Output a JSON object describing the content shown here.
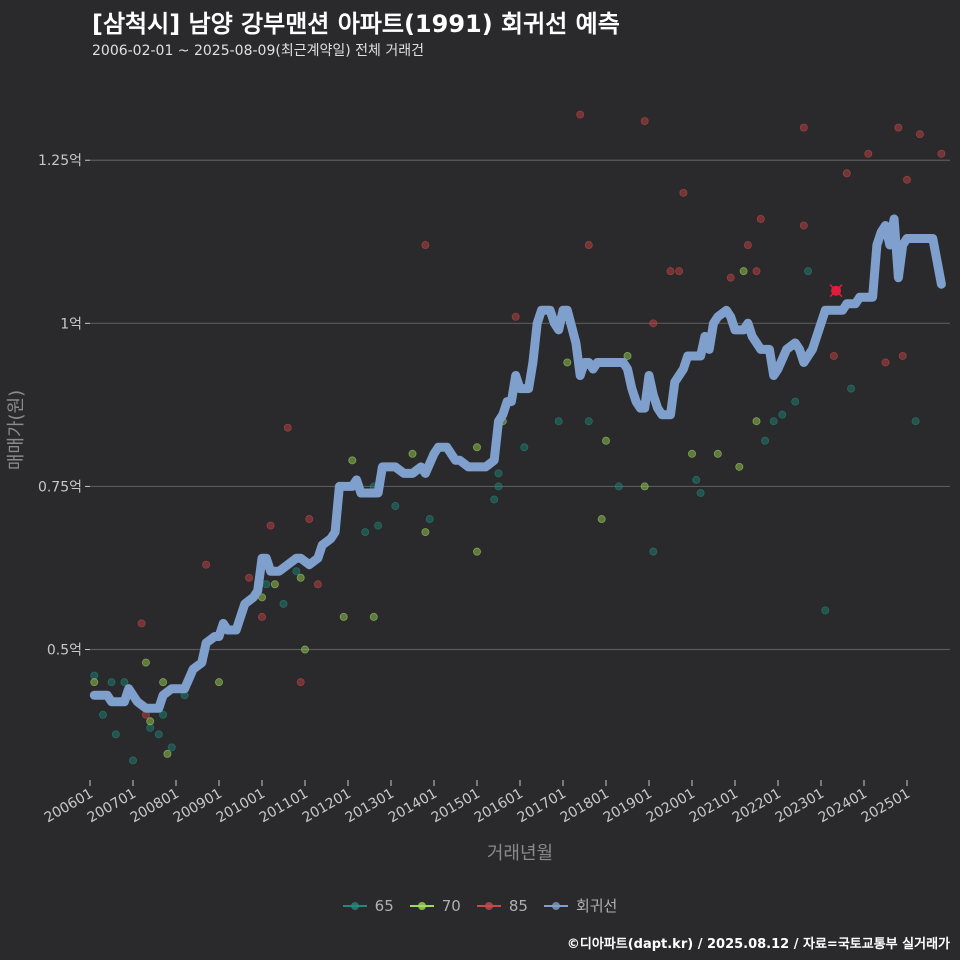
{
  "chart_data": {
    "type": "scatter",
    "title": "[삼척시] 남양 강부맨션 아파트(1991) 회귀선 예측",
    "subtitle": "2006-02-01 ~ 2025-08-09(최근계약일) 전체 거래건",
    "xlabel": "거래년월",
    "ylabel": "매매가(원)",
    "x_tick_labels": [
      "200601",
      "200701",
      "200801",
      "200901",
      "201001",
      "201101",
      "201201",
      "201301",
      "201401",
      "201501",
      "201601",
      "201701",
      "201801",
      "201901",
      "202001",
      "202101",
      "202201",
      "202301",
      "202401",
      "202501"
    ],
    "y_ticks": [
      0.5,
      0.75,
      1.0,
      1.25
    ],
    "y_tick_labels": [
      "0.5억",
      "0.75억",
      "1억",
      "1.25억"
    ],
    "xlim": [
      2006.0,
      2026.0
    ],
    "ylim": [
      0.3,
      1.35
    ],
    "grid": true,
    "legend_position": "bottom",
    "series": [
      {
        "name": "65",
        "color": "#1f8a7d",
        "points": [
          [
            2006.1,
            0.46
          ],
          [
            2006.3,
            0.4
          ],
          [
            2006.5,
            0.45
          ],
          [
            2006.6,
            0.37
          ],
          [
            2006.8,
            0.45
          ],
          [
            2007.0,
            0.33
          ],
          [
            2007.4,
            0.38
          ],
          [
            2007.6,
            0.37
          ],
          [
            2007.7,
            0.4
          ],
          [
            2007.9,
            0.35
          ],
          [
            2008.2,
            0.43
          ],
          [
            2010.1,
            0.6
          ],
          [
            2010.5,
            0.57
          ],
          [
            2010.8,
            0.62
          ],
          [
            2012.4,
            0.68
          ],
          [
            2012.6,
            0.75
          ],
          [
            2012.7,
            0.69
          ],
          [
            2013.1,
            0.72
          ],
          [
            2013.9,
            0.7
          ],
          [
            2015.4,
            0.73
          ],
          [
            2015.5,
            0.77
          ],
          [
            2015.5,
            0.75
          ],
          [
            2016.1,
            0.81
          ],
          [
            2016.9,
            0.85
          ],
          [
            2017.6,
            0.85
          ],
          [
            2018.3,
            0.75
          ],
          [
            2019.1,
            0.65
          ],
          [
            2020.1,
            0.76
          ],
          [
            2020.2,
            0.74
          ],
          [
            2021.7,
            0.82
          ],
          [
            2021.9,
            0.85
          ],
          [
            2022.1,
            0.86
          ],
          [
            2022.4,
            0.88
          ],
          [
            2022.7,
            1.08
          ],
          [
            2023.1,
            0.56
          ],
          [
            2023.7,
            0.9
          ],
          [
            2025.2,
            0.85
          ]
        ]
      },
      {
        "name": "70",
        "color": "#9fdb5a",
        "points": [
          [
            2006.1,
            0.45
          ],
          [
            2007.3,
            0.48
          ],
          [
            2007.4,
            0.39
          ],
          [
            2007.7,
            0.45
          ],
          [
            2007.8,
            0.34
          ],
          [
            2009.0,
            0.45
          ],
          [
            2010.0,
            0.58
          ],
          [
            2010.3,
            0.6
          ],
          [
            2010.9,
            0.61
          ],
          [
            2011.0,
            0.5
          ],
          [
            2011.9,
            0.55
          ],
          [
            2012.1,
            0.79
          ],
          [
            2012.6,
            0.55
          ],
          [
            2013.5,
            0.8
          ],
          [
            2013.8,
            0.68
          ],
          [
            2015.0,
            0.65
          ],
          [
            2015.0,
            0.81
          ],
          [
            2015.6,
            0.85
          ],
          [
            2017.1,
            0.94
          ],
          [
            2017.9,
            0.7
          ],
          [
            2018.0,
            0.82
          ],
          [
            2018.5,
            0.95
          ],
          [
            2018.9,
            0.75
          ],
          [
            2020.0,
            0.8
          ],
          [
            2020.6,
            0.8
          ],
          [
            2021.1,
            0.78
          ],
          [
            2021.2,
            1.08
          ],
          [
            2021.5,
            0.85
          ]
        ]
      },
      {
        "name": "85",
        "color": "#c94848",
        "points": [
          [
            2007.2,
            0.54
          ],
          [
            2007.3,
            0.4
          ],
          [
            2008.7,
            0.63
          ],
          [
            2009.7,
            0.61
          ],
          [
            2010.0,
            0.55
          ],
          [
            2010.2,
            0.69
          ],
          [
            2010.6,
            0.84
          ],
          [
            2010.9,
            0.45
          ],
          [
            2011.1,
            0.7
          ],
          [
            2011.3,
            0.6
          ],
          [
            2013.8,
            1.12
          ],
          [
            2015.9,
            1.01
          ],
          [
            2017.4,
            1.32
          ],
          [
            2017.6,
            1.12
          ],
          [
            2018.9,
            1.31
          ],
          [
            2019.1,
            1.0
          ],
          [
            2019.5,
            1.08
          ],
          [
            2019.7,
            1.08
          ],
          [
            2019.8,
            1.2
          ],
          [
            2020.9,
            1.07
          ],
          [
            2021.3,
            1.12
          ],
          [
            2021.5,
            1.08
          ],
          [
            2021.6,
            1.16
          ],
          [
            2022.6,
            1.3
          ],
          [
            2022.6,
            1.15
          ],
          [
            2023.3,
            0.95
          ],
          [
            2023.6,
            1.23
          ],
          [
            2024.1,
            1.26
          ],
          [
            2024.5,
            0.94
          ],
          [
            2024.8,
            1.3
          ],
          [
            2024.9,
            0.95
          ],
          [
            2025.0,
            1.22
          ],
          [
            2025.3,
            1.29
          ],
          [
            2025.8,
            1.26
          ]
        ]
      }
    ],
    "highlight_point": {
      "x": 2023.35,
      "y": 1.05,
      "color": "#e01e3c"
    },
    "regression": {
      "name": "회귀선",
      "color": "#7f9fcc",
      "points": [
        [
          2006.1,
          0.43
        ],
        [
          2006.4,
          0.43
        ],
        [
          2006.5,
          0.42
        ],
        [
          2006.8,
          0.42
        ],
        [
          2006.9,
          0.44
        ],
        [
          2007.1,
          0.42
        ],
        [
          2007.3,
          0.41
        ],
        [
          2007.6,
          0.41
        ],
        [
          2007.7,
          0.43
        ],
        [
          2007.9,
          0.44
        ],
        [
          2008.2,
          0.44
        ],
        [
          2008.4,
          0.47
        ],
        [
          2008.6,
          0.48
        ],
        [
          2008.7,
          0.51
        ],
        [
          2008.9,
          0.52
        ],
        [
          2009.0,
          0.52
        ],
        [
          2009.1,
          0.54
        ],
        [
          2009.2,
          0.53
        ],
        [
          2009.4,
          0.53
        ],
        [
          2009.5,
          0.55
        ],
        [
          2009.6,
          0.57
        ],
        [
          2009.8,
          0.58
        ],
        [
          2009.9,
          0.59
        ],
        [
          2010.0,
          0.64
        ],
        [
          2010.1,
          0.64
        ],
        [
          2010.2,
          0.62
        ],
        [
          2010.4,
          0.62
        ],
        [
          2010.6,
          0.63
        ],
        [
          2010.8,
          0.64
        ],
        [
          2010.9,
          0.64
        ],
        [
          2011.1,
          0.63
        ],
        [
          2011.3,
          0.64
        ],
        [
          2011.4,
          0.66
        ],
        [
          2011.6,
          0.67
        ],
        [
          2011.7,
          0.68
        ],
        [
          2011.8,
          0.75
        ],
        [
          2011.9,
          0.75
        ],
        [
          2012.1,
          0.75
        ],
        [
          2012.2,
          0.76
        ],
        [
          2012.3,
          0.74
        ],
        [
          2012.5,
          0.74
        ],
        [
          2012.7,
          0.74
        ],
        [
          2012.8,
          0.78
        ],
        [
          2013.1,
          0.78
        ],
        [
          2013.3,
          0.77
        ],
        [
          2013.5,
          0.77
        ],
        [
          2013.7,
          0.78
        ],
        [
          2013.8,
          0.77
        ],
        [
          2014.0,
          0.8
        ],
        [
          2014.1,
          0.81
        ],
        [
          2014.3,
          0.81
        ],
        [
          2014.5,
          0.79
        ],
        [
          2014.6,
          0.79
        ],
        [
          2014.8,
          0.78
        ],
        [
          2015.2,
          0.78
        ],
        [
          2015.4,
          0.79
        ],
        [
          2015.5,
          0.85
        ],
        [
          2015.6,
          0.86
        ],
        [
          2015.7,
          0.88
        ],
        [
          2015.8,
          0.88
        ],
        [
          2015.9,
          0.92
        ],
        [
          2016.0,
          0.9
        ],
        [
          2016.2,
          0.9
        ],
        [
          2016.3,
          0.94
        ],
        [
          2016.4,
          1.0
        ],
        [
          2016.5,
          1.02
        ],
        [
          2016.7,
          1.02
        ],
        [
          2016.8,
          1.0
        ],
        [
          2016.9,
          0.99
        ],
        [
          2017.0,
          1.02
        ],
        [
          2017.1,
          1.02
        ],
        [
          2017.3,
          0.97
        ],
        [
          2017.4,
          0.92
        ],
        [
          2017.5,
          0.94
        ],
        [
          2017.6,
          0.94
        ],
        [
          2017.7,
          0.93
        ],
        [
          2017.8,
          0.94
        ],
        [
          2018.4,
          0.94
        ],
        [
          2018.5,
          0.93
        ],
        [
          2018.6,
          0.9
        ],
        [
          2018.7,
          0.88
        ],
        [
          2018.8,
          0.87
        ],
        [
          2018.9,
          0.87
        ],
        [
          2019.0,
          0.92
        ],
        [
          2019.1,
          0.89
        ],
        [
          2019.2,
          0.87
        ],
        [
          2019.3,
          0.86
        ],
        [
          2019.5,
          0.86
        ],
        [
          2019.6,
          0.91
        ],
        [
          2019.8,
          0.93
        ],
        [
          2019.9,
          0.95
        ],
        [
          2020.2,
          0.95
        ],
        [
          2020.3,
          0.98
        ],
        [
          2020.4,
          0.96
        ],
        [
          2020.5,
          1.0
        ],
        [
          2020.6,
          1.01
        ],
        [
          2020.8,
          1.02
        ],
        [
          2020.9,
          1.01
        ],
        [
          2021.0,
          0.99
        ],
        [
          2021.2,
          0.99
        ],
        [
          2021.3,
          1.0
        ],
        [
          2021.4,
          0.98
        ],
        [
          2021.5,
          0.97
        ],
        [
          2021.6,
          0.96
        ],
        [
          2021.8,
          0.96
        ],
        [
          2021.9,
          0.92
        ],
        [
          2022.0,
          0.93
        ],
        [
          2022.2,
          0.96
        ],
        [
          2022.4,
          0.97
        ],
        [
          2022.5,
          0.96
        ],
        [
          2022.6,
          0.94
        ],
        [
          2022.8,
          0.96
        ],
        [
          2022.9,
          0.98
        ],
        [
          2023.1,
          1.02
        ],
        [
          2023.5,
          1.02
        ],
        [
          2023.6,
          1.03
        ],
        [
          2023.8,
          1.03
        ],
        [
          2023.9,
          1.04
        ],
        [
          2024.2,
          1.04
        ],
        [
          2024.3,
          1.12
        ],
        [
          2024.4,
          1.14
        ],
        [
          2024.5,
          1.15
        ],
        [
          2024.6,
          1.12
        ],
        [
          2024.7,
          1.16
        ],
        [
          2024.8,
          1.07
        ],
        [
          2024.9,
          1.12
        ],
        [
          2025.0,
          1.13
        ],
        [
          2025.2,
          1.13
        ],
        [
          2025.4,
          1.13
        ],
        [
          2025.6,
          1.13
        ],
        [
          2025.8,
          1.06
        ]
      ]
    }
  },
  "legend": [
    {
      "label": "65",
      "color": "#1f8a7d"
    },
    {
      "label": "70",
      "color": "#9fdb5a"
    },
    {
      "label": "85",
      "color": "#c94848"
    },
    {
      "label": "회귀선",
      "color": "#7f9fcc"
    }
  ],
  "footer": "©디아파트(dapt.kr) / 2025.08.12 / 자료=국토교통부 실거래가"
}
